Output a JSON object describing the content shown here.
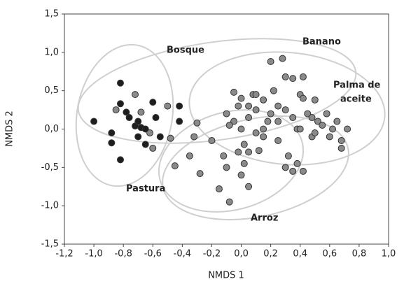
{
  "chart_data": {
    "type": "scatter",
    "xlabel": "NMDS 1",
    "ylabel": "NMDS 2",
    "xlim": [
      -1.2,
      1.0
    ],
    "xticks": [
      {
        "value": -1.2,
        "label": "-1,2"
      },
      {
        "value": -1.0,
        "label": "-1,0"
      },
      {
        "value": -0.8,
        "label": "-0,8"
      },
      {
        "value": -0.6,
        "label": "-0,6"
      },
      {
        "value": -0.4,
        "label": "-0,4"
      },
      {
        "value": -0.2,
        "label": "-0,2"
      },
      {
        "value": 0,
        "label": "0,0"
      },
      {
        "value": 0.2,
        "label": "0,2"
      },
      {
        "value": 0.4,
        "label": "0,4"
      },
      {
        "value": 0.6,
        "label": "0,6"
      },
      {
        "value": 0.8,
        "label": "0,8"
      },
      {
        "value": 1.0,
        "label": "1,0"
      }
    ],
    "ylim": [
      -1.5,
      1.5
    ],
    "yticks": [
      {
        "value": -1.5,
        "label": "-1,5"
      },
      {
        "value": -1.0,
        "label": "-1,0"
      },
      {
        "value": -0.5,
        "label": "-0,5"
      },
      {
        "value": 0,
        "label": "0,0"
      },
      {
        "value": 0.5,
        "label": "0,5"
      },
      {
        "value": 1.0,
        "label": "1,0"
      },
      {
        "value": 1.5,
        "label": "1,5"
      }
    ],
    "annotations": [
      "Bosque",
      "Banano",
      "Palma de",
      "aceite",
      "Pastura",
      "Arroz"
    ],
    "series": [
      {
        "color": "#1e1e1e",
        "x": [
          -1.0,
          -0.82,
          -0.88,
          -0.88,
          -0.78,
          -0.76,
          -0.72,
          -0.7,
          -0.7,
          -0.68,
          -0.82,
          -0.65,
          -0.6,
          -0.65,
          -0.58,
          -0.42,
          -0.42,
          -0.55,
          -0.82
        ],
        "values": [
          0.1,
          0.33,
          -0.05,
          -0.18,
          0.22,
          0.15,
          0.04,
          0.1,
          -0.1,
          0.02,
          -0.4,
          -0.2,
          0.35,
          0.0,
          0.15,
          0.3,
          0.1,
          -0.1,
          0.6
        ]
      },
      {
        "color": "#8a8a8a",
        "x": [
          -0.85,
          -0.72,
          -0.68,
          -0.62,
          -0.6,
          -0.5,
          -0.48,
          -0.45,
          -0.35,
          -0.3,
          -0.28,
          -0.32,
          -0.2,
          -0.15,
          -0.1,
          -0.1,
          -0.05,
          -0.05,
          -0.02,
          0.0,
          0.02,
          0.05,
          0.05,
          0.08,
          0.1,
          0.1,
          0.12,
          0.15,
          0.18,
          0.2,
          0.22,
          0.25,
          0.28,
          0.3,
          0.35,
          0.38,
          0.4,
          0.42,
          0.45,
          0.48,
          0.5,
          0.52,
          0.55,
          0.58,
          0.62,
          0.65,
          0.68,
          0.72,
          0.68,
          0.42,
          0.3,
          0.35,
          0.42,
          0.38,
          0.0,
          0.05,
          -0.08,
          0.25,
          0.3,
          0.15,
          -0.08,
          0.0,
          0.1,
          0.2,
          0.35,
          0.48,
          0.32,
          -0.02,
          0.02,
          0.5,
          0.25,
          -0.12,
          0.4,
          0.6,
          0.15,
          0.05
        ],
        "values": [
          0.25,
          0.45,
          0.22,
          -0.05,
          -0.25,
          0.3,
          -0.12,
          -0.48,
          -0.35,
          0.08,
          -0.58,
          -0.1,
          -0.15,
          -0.78,
          0.2,
          -0.5,
          0.48,
          0.1,
          0.3,
          0.0,
          -0.2,
          0.15,
          -0.3,
          0.45,
          0.25,
          -0.05,
          -0.28,
          0.38,
          0.1,
          0.88,
          0.5,
          0.3,
          0.92,
          0.68,
          0.66,
          0.0,
          0.45,
          0.68,
          0.2,
          -0.1,
          0.38,
          0.1,
          0.05,
          0.2,
          0.0,
          0.1,
          -0.25,
          0.0,
          -0.15,
          0.4,
          -0.5,
          -0.55,
          -0.55,
          -0.45,
          -0.6,
          -0.75,
          -0.95,
          0.1,
          0.25,
          -0.1,
          0.05,
          0.4,
          0.45,
          0.2,
          0.15,
          0.15,
          -0.35,
          -0.3,
          -0.45,
          -0.05,
          -0.15,
          -0.35,
          0.0,
          -0.1,
          0.0,
          0.3
        ]
      }
    ]
  }
}
